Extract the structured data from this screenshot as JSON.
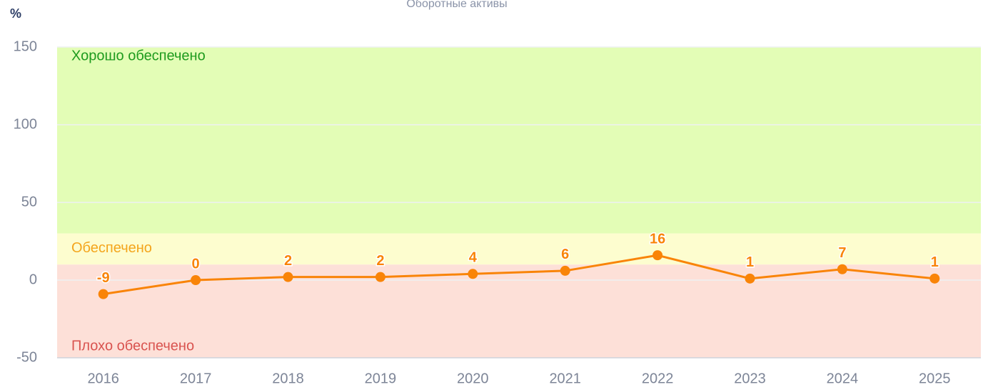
{
  "chart_data": {
    "type": "line",
    "title": "Оборотные активы",
    "y_label": "%",
    "categories": [
      "2016",
      "2017",
      "2018",
      "2019",
      "2020",
      "2021",
      "2022",
      "2023",
      "2024",
      "2025"
    ],
    "series": [
      {
        "name": "Оборотные активы",
        "color": "#f98408",
        "values": [
          -9,
          0,
          2,
          2,
          4,
          6,
          16,
          1,
          7,
          1
        ]
      }
    ],
    "ylim": [
      -50,
      150
    ],
    "yticks": [
      -50,
      0,
      50,
      100,
      150
    ],
    "grid": true,
    "bands": [
      {
        "label": "Хорошо обеспечено",
        "from": 30,
        "to": 150,
        "color": "#e3fdb6",
        "text_color": "#1e9b1e"
      },
      {
        "label": "Обеспечено",
        "from": 10,
        "to": 30,
        "color": "#fdfdcf",
        "text_color": "#f4a51c"
      },
      {
        "label": "Плохо обеспечено",
        "from": -50,
        "to": 10,
        "color": "#fde0d8",
        "text_color": "#d9534f"
      }
    ]
  }
}
